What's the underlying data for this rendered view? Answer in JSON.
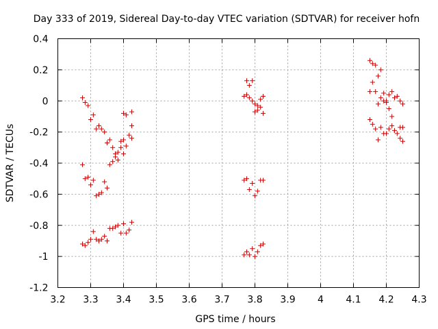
{
  "chart_data": {
    "type": "scatter",
    "title": "Day 333 of 2019, Sidereal Day-to-day VTEC variation (SDTVAR) for receiver hofn",
    "xlabel": "GPS time / hours",
    "ylabel": "SDTVAR / TECUs",
    "xlim": [
      3.2,
      4.3
    ],
    "ylim": [
      -1.2,
      0.4
    ],
    "xticks": [
      3.2,
      3.3,
      3.4,
      3.5,
      3.6,
      3.7,
      3.8,
      3.9,
      4.0,
      4.1,
      4.2,
      4.3
    ],
    "xtick_labels": [
      "3.2",
      "3.3",
      "3.4",
      "3.5",
      "3.6",
      "3.7",
      "3.8",
      "3.9",
      "4",
      "4.1",
      "4.2",
      "4.3"
    ],
    "yticks": [
      -1.2,
      -1.0,
      -0.8,
      -0.6,
      -0.4,
      -0.2,
      0.0,
      0.2,
      0.4
    ],
    "ytick_labels": [
      "-1.2",
      "-1",
      "-0.8",
      "-0.6",
      "-0.4",
      "-0.2",
      "0",
      "0.2",
      "0.4"
    ],
    "grid": true,
    "marker": "+",
    "color": "#cc0000",
    "series": [
      {
        "name": "SDTVAR",
        "points": [
          [
            3.275,
            0.02
          ],
          [
            3.283,
            -0.01
          ],
          [
            3.292,
            -0.03
          ],
          [
            3.3,
            -0.12
          ],
          [
            3.308,
            -0.09
          ],
          [
            3.317,
            -0.18
          ],
          [
            3.325,
            -0.16
          ],
          [
            3.333,
            -0.18
          ],
          [
            3.342,
            -0.2
          ],
          [
            3.35,
            -0.27
          ],
          [
            3.358,
            -0.25
          ],
          [
            3.367,
            -0.3
          ],
          [
            3.375,
            -0.34
          ],
          [
            3.383,
            -0.33
          ],
          [
            3.392,
            -0.3
          ],
          [
            3.4,
            -0.25
          ],
          [
            3.408,
            -0.29
          ],
          [
            3.417,
            -0.22
          ],
          [
            3.425,
            -0.24
          ],
          [
            3.425,
            -0.16
          ],
          [
            3.425,
            -0.07
          ],
          [
            3.408,
            -0.09
          ],
          [
            3.4,
            -0.08
          ],
          [
            3.392,
            -0.26
          ],
          [
            3.383,
            -0.38
          ],
          [
            3.375,
            -0.36
          ],
          [
            3.367,
            -0.39
          ],
          [
            3.358,
            -0.41
          ],
          [
            3.4,
            -0.34
          ],
          [
            3.275,
            -0.41
          ],
          [
            3.283,
            -0.5
          ],
          [
            3.292,
            -0.49
          ],
          [
            3.3,
            -0.54
          ],
          [
            3.308,
            -0.51
          ],
          [
            3.317,
            -0.61
          ],
          [
            3.325,
            -0.6
          ],
          [
            3.333,
            -0.59
          ],
          [
            3.342,
            -0.52
          ],
          [
            3.35,
            -0.56
          ],
          [
            3.275,
            -0.92
          ],
          [
            3.283,
            -0.93
          ],
          [
            3.292,
            -0.91
          ],
          [
            3.3,
            -0.89
          ],
          [
            3.308,
            -0.84
          ],
          [
            3.317,
            -0.89
          ],
          [
            3.325,
            -0.9
          ],
          [
            3.333,
            -0.89
          ],
          [
            3.342,
            -0.87
          ],
          [
            3.35,
            -0.9
          ],
          [
            3.358,
            -0.82
          ],
          [
            3.367,
            -0.82
          ],
          [
            3.375,
            -0.81
          ],
          [
            3.383,
            -0.8
          ],
          [
            3.392,
            -0.85
          ],
          [
            3.4,
            -0.79
          ],
          [
            3.408,
            -0.85
          ],
          [
            3.417,
            -0.83
          ],
          [
            3.425,
            -0.78
          ],
          [
            3.767,
            0.03
          ],
          [
            3.775,
            0.13
          ],
          [
            3.775,
            0.04
          ],
          [
            3.783,
            0.02
          ],
          [
            3.783,
            0.1
          ],
          [
            3.792,
            0.13
          ],
          [
            3.792,
            0.0
          ],
          [
            3.8,
            -0.02
          ],
          [
            3.8,
            -0.07
          ],
          [
            3.808,
            -0.03
          ],
          [
            3.808,
            -0.06
          ],
          [
            3.817,
            -0.04
          ],
          [
            3.817,
            0.01
          ],
          [
            3.825,
            0.03
          ],
          [
            3.825,
            -0.08
          ],
          [
            3.767,
            -0.51
          ],
          [
            3.775,
            -0.5
          ],
          [
            3.783,
            -0.57
          ],
          [
            3.792,
            -0.53
          ],
          [
            3.8,
            -0.61
          ],
          [
            3.808,
            -0.58
          ],
          [
            3.817,
            -0.51
          ],
          [
            3.825,
            -0.51
          ],
          [
            3.767,
            -0.99
          ],
          [
            3.775,
            -0.97
          ],
          [
            3.783,
            -0.99
          ],
          [
            3.792,
            -0.95
          ],
          [
            3.8,
            -1.0
          ],
          [
            3.808,
            -0.97
          ],
          [
            3.817,
            -0.93
          ],
          [
            3.825,
            -0.92
          ],
          [
            4.15,
            0.26
          ],
          [
            4.158,
            0.12
          ],
          [
            4.158,
            0.24
          ],
          [
            4.167,
            0.23
          ],
          [
            4.167,
            0.06
          ],
          [
            4.15,
            0.06
          ],
          [
            4.175,
            0.16
          ],
          [
            4.175,
            -0.02
          ],
          [
            4.183,
            0.2
          ],
          [
            4.183,
            0.02
          ],
          [
            4.192,
            0.05
          ],
          [
            4.192,
            0.0
          ],
          [
            4.2,
            0.0
          ],
          [
            4.2,
            -0.01
          ],
          [
            4.208,
            0.04
          ],
          [
            4.208,
            -0.05
          ],
          [
            4.217,
            0.06
          ],
          [
            4.217,
            -0.1
          ],
          [
            4.225,
            0.02
          ],
          [
            4.233,
            0.03
          ],
          [
            4.242,
            0.0
          ],
          [
            4.25,
            -0.02
          ],
          [
            4.15,
            -0.12
          ],
          [
            4.158,
            -0.15
          ],
          [
            4.167,
            -0.18
          ],
          [
            4.175,
            -0.25
          ],
          [
            4.183,
            -0.17
          ],
          [
            4.192,
            -0.21
          ],
          [
            4.2,
            -0.21
          ],
          [
            4.208,
            -0.18
          ],
          [
            4.217,
            -0.16
          ],
          [
            4.225,
            -0.19
          ],
          [
            4.233,
            -0.21
          ],
          [
            4.242,
            -0.17
          ],
          [
            4.25,
            -0.17
          ],
          [
            4.25,
            -0.26
          ],
          [
            4.242,
            -0.24
          ]
        ]
      }
    ]
  }
}
